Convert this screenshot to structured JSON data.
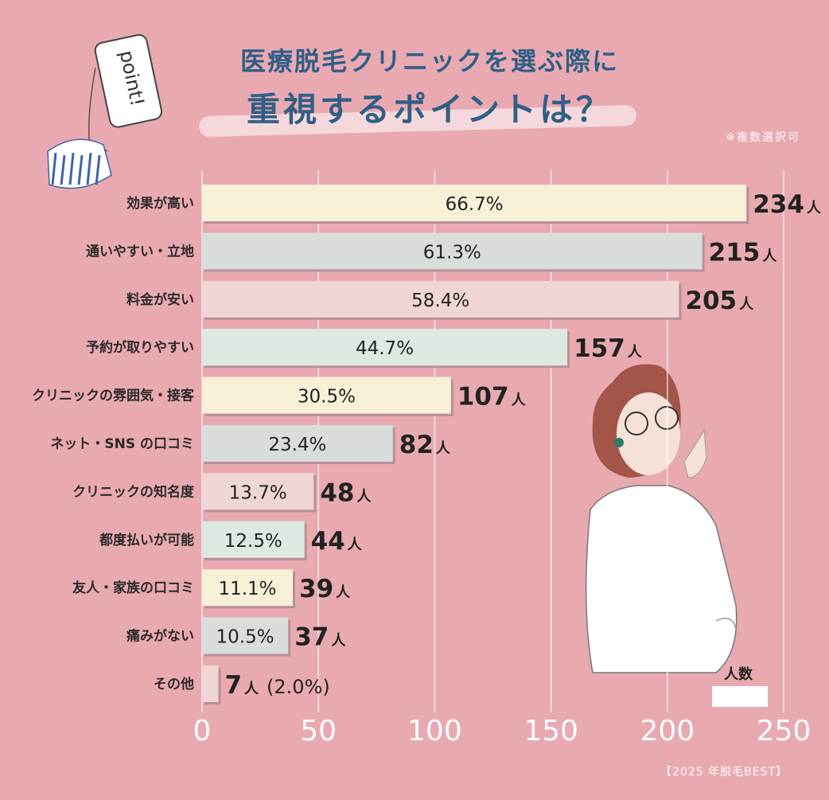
{
  "header": {
    "title_line1": "医療脱毛クリニックを選ぶ際に",
    "title_line2": "重視するポイントは？",
    "note": "※複数選択可",
    "badge_text": "point!"
  },
  "footer": {
    "source": "【2025 年脱毛BEST】"
  },
  "chart_data": {
    "type": "bar",
    "orientation": "horizontal",
    "categories": [
      "効果が高い",
      "通いやすい・立地",
      "料金が安い",
      "予約が取りやすい",
      "クリニックの雰囲気・接客",
      "ネット・SNS の口コミ",
      "クリニックの知名度",
      "都度払いが可能",
      "友人・家族の口コミ",
      "痛みがない",
      "その他"
    ],
    "values": [
      234,
      215,
      205,
      157,
      107,
      82,
      48,
      44,
      39,
      37,
      7
    ],
    "percent_labels": [
      "66.7%",
      "61.3%",
      "58.4%",
      "44.7%",
      "30.5%",
      "23.4%",
      "13.7%",
      "12.5%",
      "11.1%",
      "10.5%",
      ""
    ],
    "count_labels": [
      "234",
      "215",
      "205",
      "157",
      "107",
      "82",
      "48",
      "44",
      "39",
      "37",
      "7"
    ],
    "unit": "人",
    "other_percent": "(2.0%)",
    "legend_label": "人数",
    "xlim": [
      0,
      250
    ],
    "x_ticks": [
      "0",
      "50",
      "100",
      "150",
      "200",
      "250"
    ],
    "grid": true,
    "bar_colors": [
      "#f9f0d8",
      "#d8ddda",
      "#efd6d4",
      "#dde8e0",
      "#f9f0d8",
      "#d8ddda",
      "#efd6d4",
      "#dde8e0",
      "#f9f0d8",
      "#d8ddda",
      "#efd6d4"
    ]
  }
}
